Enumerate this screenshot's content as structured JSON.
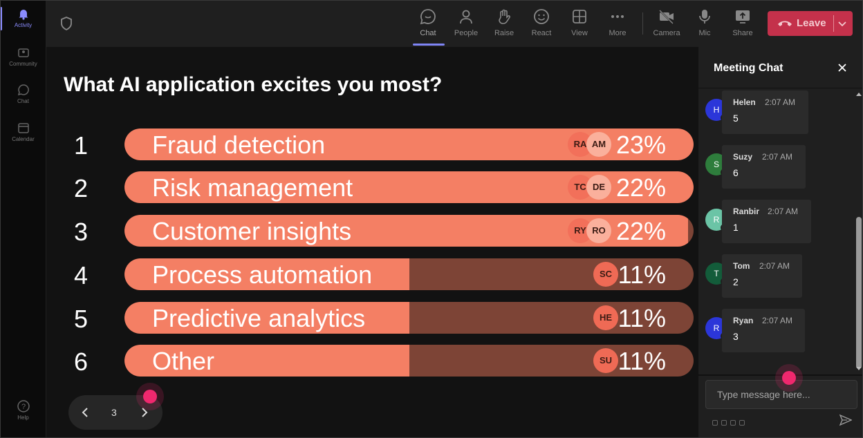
{
  "rail": {
    "items": [
      {
        "label": "Activity",
        "icon": "bell-icon",
        "active": true
      },
      {
        "label": "Community",
        "icon": "community-icon"
      },
      {
        "label": "Chat",
        "icon": "chat-icon"
      },
      {
        "label": "Calendar",
        "icon": "calendar-icon"
      },
      {
        "label": "Help",
        "icon": "help-icon"
      }
    ]
  },
  "toolbar": {
    "chat": "Chat",
    "people": "People",
    "raise": "Raise",
    "react": "React",
    "view": "View",
    "more": "More",
    "camera": "Camera",
    "mic": "Mic",
    "share": "Share",
    "leave": "Leave",
    "leave_color": "#c4314b",
    "active_tab_color": "#7f85f5"
  },
  "poll": {
    "question": "What AI application excites you most?",
    "bar_fill_color": "#f47f64",
    "bar_track_color": "#7d4436",
    "options": [
      {
        "num": "1",
        "label": "Fraud detection",
        "percent": "23%",
        "fill": 1.0,
        "avatars": [
          "RA",
          "AM"
        ]
      },
      {
        "num": "2",
        "label": "Risk management",
        "percent": "22%",
        "fill": 1.0,
        "avatars": [
          "TC",
          "DE"
        ]
      },
      {
        "num": "3",
        "label": "Customer insights",
        "percent": "22%",
        "fill": 0.99,
        "avatars": [
          "RY",
          "RO"
        ]
      },
      {
        "num": "4",
        "label": "Process automation",
        "percent": "11%",
        "fill": 0.5,
        "avatars": [
          "SC"
        ]
      },
      {
        "num": "5",
        "label": "Predictive analytics",
        "percent": "11%",
        "fill": 0.5,
        "avatars": [
          "HE"
        ]
      },
      {
        "num": "6",
        "label": "Other",
        "percent": "11%",
        "fill": 0.5,
        "avatars": [
          "SU"
        ]
      }
    ],
    "page": "3"
  },
  "chat": {
    "title": "Meeting Chat",
    "messages": [
      {
        "initial": "H",
        "name": "Helen",
        "time": "2:07 AM",
        "text": "5",
        "color": "#2b36d9"
      },
      {
        "initial": "S",
        "name": "Suzy",
        "time": "2:07 AM",
        "text": "6",
        "color": "#2e7d3c"
      },
      {
        "initial": "R",
        "name": "Ranbir",
        "time": "2:07 AM",
        "text": "1",
        "color": "#6bc4a6"
      },
      {
        "initial": "T",
        "name": "Tom",
        "time": "2:07 AM",
        "text": "2",
        "color": "#135c3a"
      },
      {
        "initial": "R",
        "name": "Ryan",
        "time": "2:07 AM",
        "text": "3",
        "color": "#2b36d9"
      }
    ],
    "compose_placeholder": "Type message here..."
  }
}
